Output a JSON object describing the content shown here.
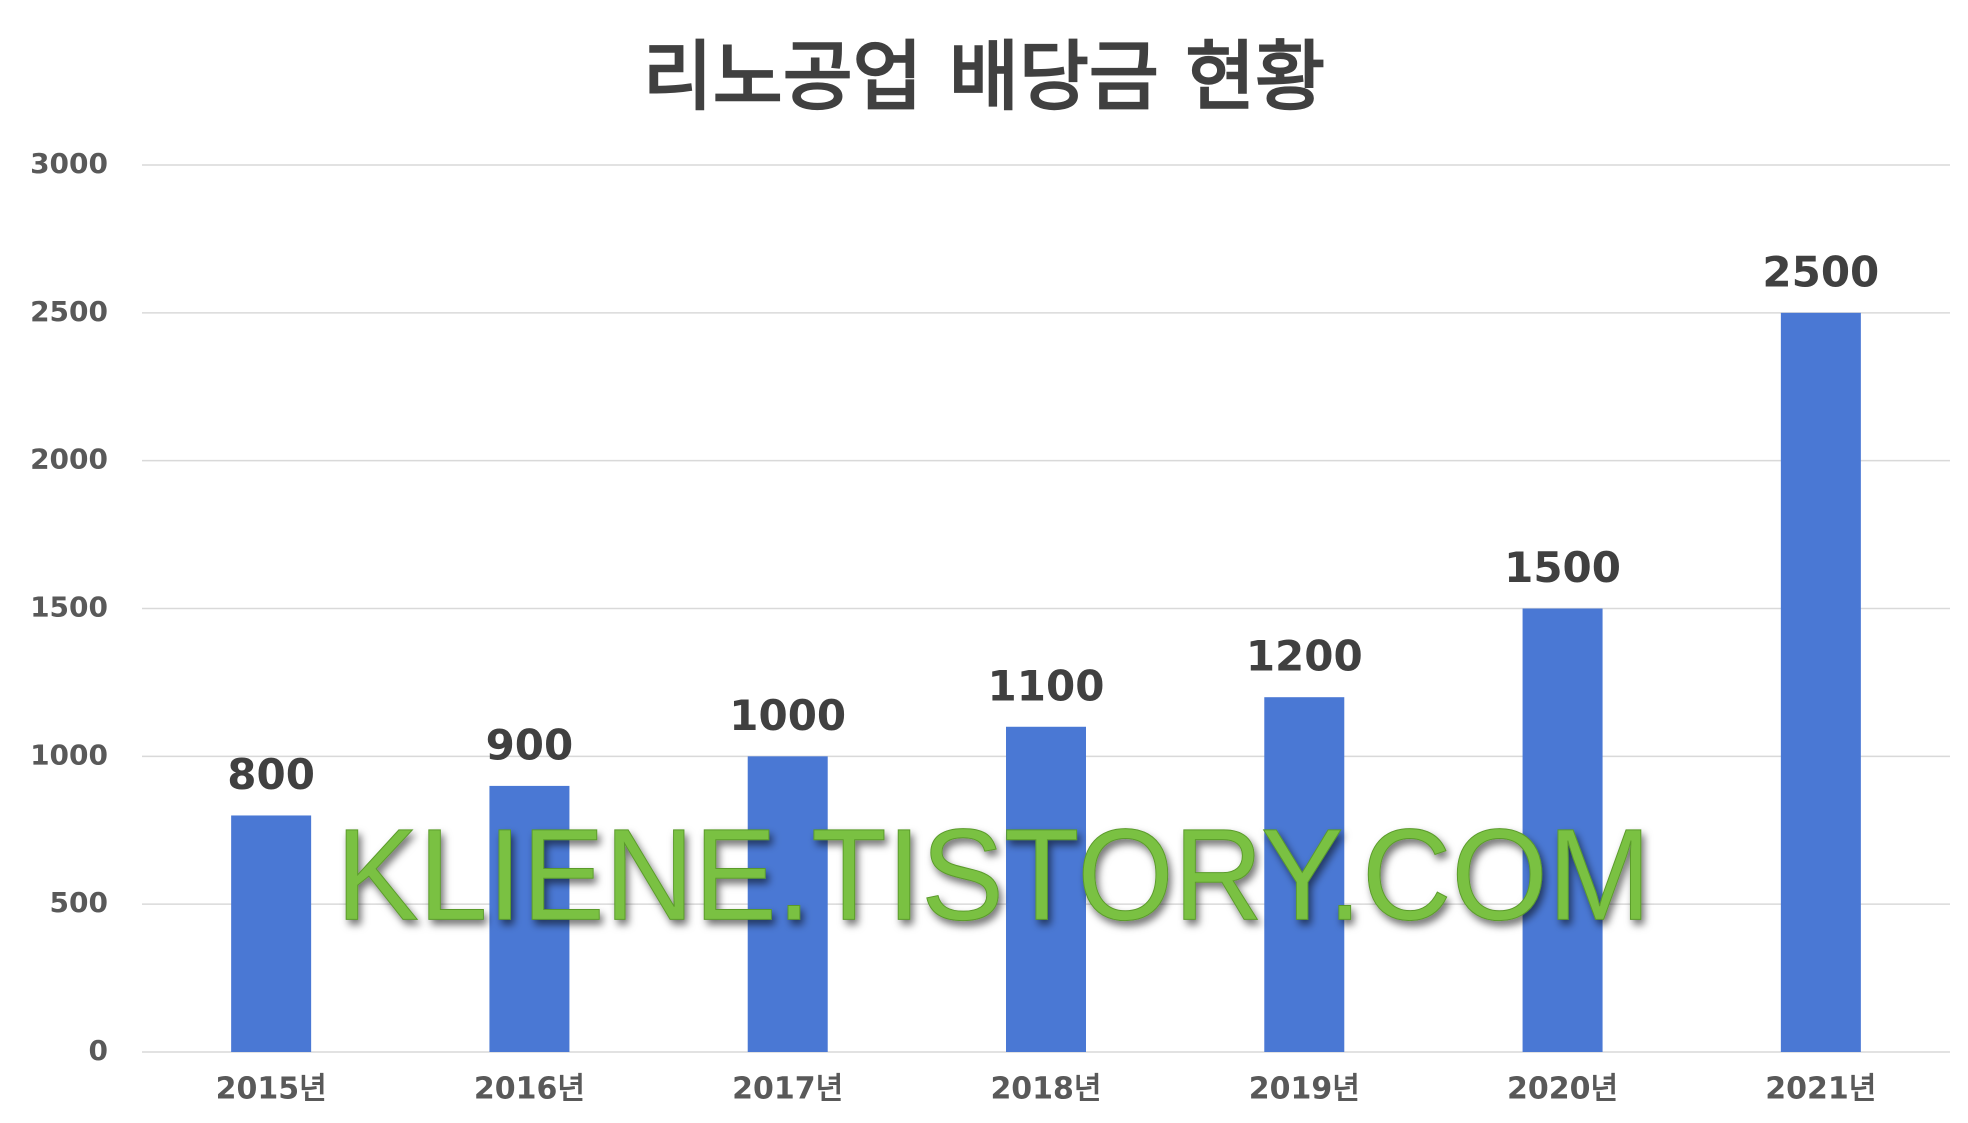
{
  "chart_data": {
    "type": "bar",
    "title": "리노공업 배당금 현황",
    "categories": [
      "2015년",
      "2016년",
      "2017년",
      "2018년",
      "2019년",
      "2020년",
      "2021년"
    ],
    "values": [
      800,
      900,
      1000,
      1100,
      1200,
      1500,
      2500
    ],
    "color": "#4a78d4",
    "ylim": [
      0,
      3000
    ],
    "yticks": [
      0,
      500,
      1000,
      1500,
      2000,
      2500,
      3000
    ],
    "grid": true,
    "watermark": "KLIENE.TISTORY.COM"
  }
}
